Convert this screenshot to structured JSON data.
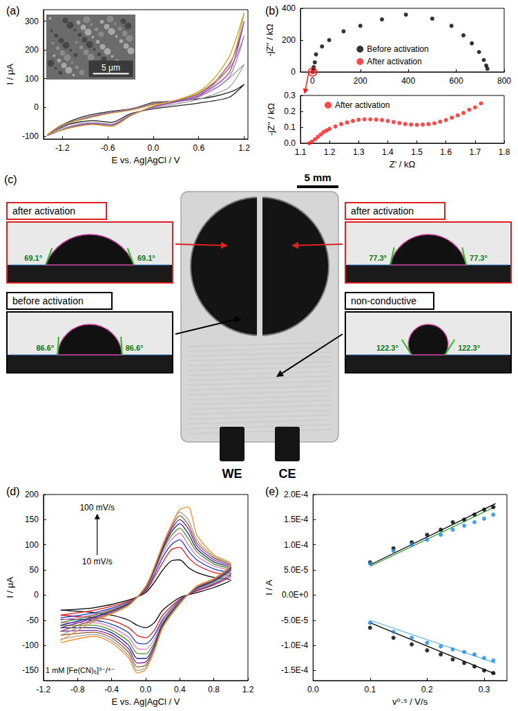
{
  "chart_data": [
    {
      "type": "line",
      "title": "(a)",
      "x_label": "E vs. Ag|AgCl / V",
      "y_label": "I / μA",
      "xlim": [
        -1.45,
        1.25
      ],
      "xticks": [
        -1.2,
        -0.6,
        {
          "value": 0,
          "label": "0.0"
        },
        0.6,
        1.2
      ],
      "ylim": [
        -110,
        340
      ],
      "yticks": [
        -100,
        0,
        100,
        200,
        300
      ],
      "grid": false,
      "annotations": [
        {
          "text": "5 μm"
        }
      ],
      "x": [
        0,
        0.3,
        0.6,
        0.8,
        1.0,
        1.1,
        1.2,
        1.0,
        0.6,
        0.3,
        0,
        -0.3,
        -0.55,
        -0.8,
        -1.1,
        -1.4,
        -1.2,
        -0.9,
        -0.6,
        -0.3,
        0
      ],
      "series": [
        {
          "color": "#222222",
          "values": [
            18,
            22,
            30,
            38,
            52,
            63,
            80,
            35,
            15,
            5,
            -5,
            -22,
            -52,
            -46,
            -58,
            -95,
            -60,
            -30,
            -15,
            -5,
            18
          ]
        },
        {
          "color": "#a0a0a0",
          "values": [
            14,
            22,
            40,
            62,
            100,
            125,
            150,
            70,
            28,
            12,
            -2,
            -25,
            -58,
            -52,
            -65,
            -98,
            -65,
            -35,
            -18,
            -6,
            14
          ]
        },
        {
          "color": "#b07cc6",
          "values": [
            11,
            24,
            45,
            80,
            135,
            180,
            250,
            105,
            36,
            18,
            0,
            -27,
            -60,
            -55,
            -68,
            -97,
            -63,
            -37,
            -19,
            -7,
            11
          ]
        },
        {
          "color": "#8e3fa0",
          "values": [
            12,
            24,
            48,
            85,
            150,
            205,
            300,
            120,
            40,
            20,
            2,
            -28,
            -62,
            -57,
            -70,
            -98,
            -62,
            -38,
            -20,
            -8,
            12
          ]
        },
        {
          "color": "#c9a227",
          "values": [
            10,
            25,
            55,
            100,
            175,
            245,
            330,
            140,
            50,
            25,
            5,
            -30,
            -66,
            -60,
            -72,
            -95,
            -60,
            -40,
            -22,
            -10,
            10
          ]
        }
      ]
    },
    {
      "type": "scatter",
      "title": "(b)",
      "marker": "circle",
      "y_label": "-jZ'' / kΩ",
      "xlim": [
        -50,
        800
      ],
      "xticks": [
        0,
        200,
        400,
        600,
        800
      ],
      "ylim": [
        0,
        400
      ],
      "yticks": [
        0,
        200,
        400
      ],
      "grid": false,
      "legend": "center",
      "series": [
        {
          "name": "Before activation",
          "color": "#000000",
          "x": [
            3,
            5,
            10,
            15,
            40,
            70,
            130,
            200,
            290,
            390,
            500,
            580,
            630,
            665,
            695,
            715,
            725,
            730
          ],
          "values": [
            10,
            30,
            60,
            110,
            160,
            200,
            255,
            290,
            330,
            360,
            335,
            290,
            230,
            180,
            125,
            75,
            40,
            20
          ]
        },
        {
          "name": "After activation",
          "color": "#ff1a1a",
          "x": [
            1.13,
            1.14,
            1.15,
            1.16,
            1.17,
            1.18,
            1.19,
            1.2,
            1.22,
            1.24,
            1.26,
            1.28,
            1.3,
            1.32,
            1.34,
            1.36,
            1.38,
            1.4,
            1.42,
            1.44,
            1.46,
            1.48,
            1.5,
            1.52,
            1.54,
            1.56,
            1.58,
            1.6,
            1.62,
            1.64,
            1.66,
            1.68,
            1.7,
            1.72
          ],
          "values": [
            0.0,
            0.01,
            0.025,
            0.04,
            0.055,
            0.07,
            0.08,
            0.09,
            0.105,
            0.12,
            0.13,
            0.14,
            0.147,
            0.15,
            0.15,
            0.148,
            0.145,
            0.14,
            0.133,
            0.127,
            0.12,
            0.117,
            0.115,
            0.117,
            0.12,
            0.125,
            0.135,
            0.145,
            0.16,
            0.175,
            0.19,
            0.21,
            0.225,
            0.25
          ]
        }
      ]
    },
    {
      "type": "scatter",
      "marker": "circle",
      "x_label": "Z' / kΩ",
      "y_label": "-jZ'' / kΩ",
      "xlim": [
        1.1,
        1.8
      ],
      "xticks": [
        1.1,
        1.2,
        1.3,
        1.4,
        1.5,
        1.6,
        1.7,
        1.8
      ],
      "ylim": [
        0,
        0.3
      ],
      "yticks": [
        {
          "value": 0,
          "label": "0.0"
        },
        0.1,
        0.2,
        0.3
      ],
      "grid": false,
      "legend": "top",
      "series": [
        {
          "name": "After activation",
          "color": "#ff1a1a",
          "x": [
            1.13,
            1.14,
            1.15,
            1.16,
            1.17,
            1.18,
            1.19,
            1.2,
            1.22,
            1.24,
            1.26,
            1.28,
            1.3,
            1.32,
            1.34,
            1.36,
            1.38,
            1.4,
            1.42,
            1.44,
            1.46,
            1.48,
            1.5,
            1.52,
            1.54,
            1.56,
            1.58,
            1.6,
            1.62,
            1.64,
            1.66,
            1.68,
            1.7,
            1.72
          ],
          "values": [
            0.0,
            0.01,
            0.025,
            0.04,
            0.055,
            0.07,
            0.08,
            0.09,
            0.105,
            0.12,
            0.13,
            0.14,
            0.147,
            0.15,
            0.15,
            0.148,
            0.145,
            0.14,
            0.133,
            0.127,
            0.12,
            0.117,
            0.115,
            0.117,
            0.12,
            0.125,
            0.135,
            0.145,
            0.16,
            0.175,
            0.19,
            0.21,
            0.225,
            0.25
          ]
        }
      ]
    },
    {
      "type": "line",
      "title": "(d)",
      "x_label": "E vs. Ag|AgCl / V",
      "y_label": "I / μA",
      "xlim": [
        -1.2,
        1.2
      ],
      "xticks": [
        -1.2,
        -0.8,
        -0.4,
        {
          "value": 0,
          "label": "0.0"
        },
        0.4,
        0.8,
        1.2
      ],
      "ylim": [
        -170,
        200
      ],
      "yticks": [
        -150,
        -100,
        -50,
        0,
        50,
        100,
        150,
        200
      ],
      "grid": false,
      "annotations": [
        {
          "text": "100 mV/s"
        },
        {
          "text": "10 mV/s"
        },
        {
          "text": "1 mM [Fe(CN)₆]³⁻/⁴⁻"
        }
      ],
      "x": [
        -1.0,
        -0.6,
        -0.2,
        0.0,
        0.1,
        0.2,
        0.3,
        0.4,
        0.5,
        0.6,
        0.8,
        1.0,
        0.8,
        0.6,
        0.4,
        0.2,
        0.1,
        0.0,
        -0.1,
        -0.2,
        -0.4,
        -0.6,
        -1.0
      ],
      "series": [
        {
          "color": "#000000",
          "values": [
            -30,
            -25,
            -10,
            5,
            25,
            50,
            68,
            70,
            55,
            45,
            35,
            30,
            15,
            5,
            -5,
            -30,
            -55,
            -65,
            -60,
            -50,
            -40,
            -35,
            -30
          ]
        },
        {
          "color": "#e41a1c",
          "values": [
            -40,
            -30,
            -12,
            8,
            35,
            65,
            90,
            95,
            75,
            60,
            45,
            38,
            20,
            8,
            -8,
            -40,
            -70,
            -85,
            -80,
            -65,
            -50,
            -45,
            -40
          ]
        },
        {
          "color": "#1f3fbf",
          "values": [
            -45,
            -35,
            -14,
            10,
            40,
            75,
            100,
            110,
            88,
            70,
            52,
            42,
            22,
            10,
            -10,
            -48,
            -80,
            -97,
            -95,
            -75,
            -58,
            -50,
            -48
          ]
        },
        {
          "color": "#e377c2",
          "values": [
            -50,
            -38,
            -15,
            12,
            45,
            82,
            110,
            123,
            100,
            78,
            58,
            46,
            24,
            12,
            -12,
            -52,
            -88,
            -108,
            -106,
            -84,
            -64,
            -55,
            -55
          ]
        },
        {
          "color": "#4d9221",
          "values": [
            -55,
            -40,
            -16,
            13,
            48,
            88,
            118,
            133,
            112,
            86,
            62,
            50,
            26,
            13,
            -13,
            -55,
            -95,
            -117,
            -116,
            -92,
            -70,
            -60,
            -60
          ]
        },
        {
          "color": "#1a237e",
          "values": [
            -60,
            -43,
            -17,
            14,
            50,
            92,
            125,
            142,
            122,
            92,
            66,
            53,
            28,
            14,
            -14,
            -58,
            -100,
            -126,
            -126,
            -100,
            -75,
            -65,
            -65
          ]
        },
        {
          "color": "#7b1fa2",
          "values": [
            -65,
            -45,
            -18,
            15,
            52,
            95,
            130,
            150,
            132,
            98,
            70,
            56,
            30,
            15,
            -15,
            -60,
            -105,
            -133,
            -135,
            -107,
            -80,
            -70,
            -72
          ]
        },
        {
          "color": "#8e5a2b",
          "values": [
            -72,
            -48,
            -19,
            16,
            54,
            98,
            134,
            158,
            140,
            104,
            74,
            58,
            31,
            16,
            -16,
            -62,
            -108,
            -139,
            -143,
            -114,
            -85,
            -74,
            -80
          ]
        },
        {
          "color": "#9e9e9e",
          "values": [
            -80,
            -50,
            -20,
            17,
            55,
            100,
            137,
            165,
            150,
            110,
            77,
            60,
            32,
            17,
            -17,
            -64,
            -110,
            -144,
            -150,
            -120,
            -90,
            -78,
            -88
          ]
        },
        {
          "color": "#f28e2b",
          "values": [
            -90,
            -52,
            -21,
            18,
            56,
            101,
            139,
            170,
            175,
            120,
            80,
            62,
            33,
            18,
            -18,
            -65,
            -112,
            -148,
            -155,
            -125,
            -95,
            -82,
            -95
          ]
        }
      ]
    },
    {
      "type": "scatter",
      "title": "(e)",
      "marker": "circle",
      "x_label": "v⁰·⁵ / V/s",
      "y_label": "I / A",
      "xlim": [
        0,
        0.34
      ],
      "xticks": [
        {
          "value": 0,
          "label": "0.0"
        },
        0.1,
        0.2,
        0.3
      ],
      "ylim": [
        -0.00017,
        0.0002
      ],
      "yticks": [
        {
          "value": -0.00015,
          "label": "-1.5E-4"
        },
        {
          "value": -0.0001,
          "label": "-1.0E-4"
        },
        {
          "value": -5e-05,
          "label": "-5.0E-5"
        },
        {
          "value": 0,
          "label": "0.0E+0"
        },
        {
          "value": 5e-05,
          "label": "5.0E-5"
        },
        {
          "value": 0.0001,
          "label": "1.0E-4"
        },
        {
          "value": 0.00015,
          "label": "1.5E-4"
        },
        {
          "value": 0.0002,
          "label": "2.0E-4"
        }
      ],
      "grid": false,
      "x": [
        0.1,
        0.141,
        0.173,
        0.2,
        0.224,
        0.245,
        0.265,
        0.283,
        0.3,
        0.316
      ],
      "series": [
        {
          "color": "#000000",
          "values": [
            6.5e-05,
            9.3e-05,
            0.000105,
            0.00012,
            0.00013,
            0.000145,
            0.00015,
            0.00016,
            0.00017,
            0.000175
          ]
        },
        {
          "color": "#1e88e5",
          "values": [
            6.3e-05,
            8.8e-05,
            0.0001,
            0.00011,
            0.00012,
            0.00013,
            0.000138,
            0.000145,
            0.000152,
            0.00016
          ]
        },
        {
          "color": "#000000",
          "values": [
            -6.5e-05,
            -8.5e-05,
            -9.8e-05,
            -0.00011,
            -0.000118,
            -0.000128,
            -0.000135,
            -0.000142,
            -0.00015,
            -0.000155
          ]
        },
        {
          "color": "#1e88e5",
          "values": [
            -5.5e-05,
            -7.3e-05,
            -8.5e-05,
            -9.5e-05,
            -0.000102,
            -0.000108,
            -0.000113,
            -0.000118,
            -0.000125,
            -0.00013
          ]
        },
        {
          "type": "line",
          "color": "#000000",
          "x": [
            0.1,
            0.32
          ],
          "values": [
            6e-05,
            0.000182
          ]
        },
        {
          "type": "line",
          "color": "#2ca02c",
          "x": [
            0.1,
            0.32
          ],
          "values": [
            5.7e-05,
            0.000176
          ]
        },
        {
          "type": "line",
          "color": "#000000",
          "x": [
            0.1,
            0.32
          ],
          "values": [
            -5.5e-05,
            -0.000157
          ]
        },
        {
          "type": "line",
          "color": "#5ab4e5",
          "x": [
            0.1,
            0.32
          ],
          "values": [
            -5e-05,
            -0.000135
          ]
        }
      ]
    }
  ],
  "panel_c": {
    "title": "(c)",
    "scale_bar": "5 mm",
    "electrodes": [
      "WE",
      "CE"
    ],
    "insets": [
      {
        "label": "after activation",
        "angle": 69.1,
        "angle_label": "69.1°",
        "color": "#e02020"
      },
      {
        "label": "before activation",
        "angle": 86.6,
        "angle_label": "86.6°",
        "color": "#000000"
      },
      {
        "label": "after activation",
        "angle": 77.3,
        "angle_label": "77.3°",
        "color": "#e02020"
      },
      {
        "label": "non-conductive",
        "angle": 122.3,
        "angle_label": "122.3°",
        "color": "#000000"
      }
    ]
  }
}
